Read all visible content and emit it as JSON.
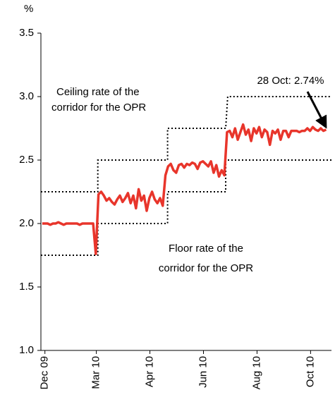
{
  "chart_data": {
    "type": "line",
    "y_label": "%",
    "xlim": [
      -3,
      214
    ],
    "ylim": [
      1.0,
      3.5
    ],
    "xticks": [
      {
        "value": 0,
        "label": "Dec 09"
      },
      {
        "value": 38.4,
        "label": "Mar 10"
      },
      {
        "value": 78.4,
        "label": "Apr 10"
      },
      {
        "value": 118.4,
        "label": "Jun 10"
      },
      {
        "value": 158.4,
        "label": "Aug 10"
      },
      {
        "value": 198.4,
        "label": "Oct 10"
      }
    ],
    "yticks": [
      {
        "value": 1,
        "label": "1.0"
      },
      1.5,
      {
        "value": 2,
        "label": "2.0"
      },
      2.5,
      {
        "value": 3,
        "label": "3.0"
      },
      3.5
    ],
    "series": [
      {
        "color": "#e8352b",
        "style": "solid",
        "x": [
          -2,
          0,
          2,
          4,
          6,
          8,
          10,
          12,
          14,
          16,
          18,
          20,
          22,
          24,
          26,
          28,
          30,
          32,
          34,
          36,
          38,
          40,
          42,
          44,
          46,
          48,
          50,
          52,
          54,
          56,
          58,
          60,
          62,
          64,
          66,
          68,
          70,
          72,
          74,
          76,
          78,
          80,
          82,
          84,
          86,
          88,
          90,
          92,
          94,
          96,
          98,
          100,
          102,
          104,
          106,
          108,
          110,
          112,
          114,
          116,
          118,
          120,
          122,
          124,
          126,
          128,
          130,
          132,
          134,
          136,
          138,
          140,
          142,
          144,
          146,
          148,
          150,
          152,
          154,
          156,
          158,
          160,
          162,
          164,
          166,
          168,
          170,
          172,
          174,
          176,
          178,
          180,
          182,
          184,
          186,
          188,
          190,
          192,
          194,
          196,
          198,
          200,
          202,
          204,
          206,
          208,
          210
        ],
        "values": [
          2.0,
          2.0,
          2.0,
          1.99,
          2.0,
          2.0,
          2.01,
          2.0,
          1.99,
          2.0,
          2.0,
          2.0,
          2.0,
          2.0,
          1.99,
          2.0,
          2.0,
          2.0,
          2.0,
          2.0,
          1.76,
          2.23,
          2.25,
          2.22,
          2.18,
          2.2,
          2.17,
          2.15,
          2.19,
          2.22,
          2.17,
          2.2,
          2.24,
          2.16,
          2.22,
          2.12,
          2.27,
          2.18,
          2.22,
          2.1,
          2.2,
          2.25,
          2.19,
          2.16,
          2.2,
          2.14,
          2.38,
          2.45,
          2.47,
          2.42,
          2.4,
          2.46,
          2.47,
          2.44,
          2.47,
          2.46,
          2.48,
          2.47,
          2.43,
          2.48,
          2.49,
          2.47,
          2.45,
          2.49,
          2.4,
          2.46,
          2.37,
          2.42,
          2.38,
          2.72,
          2.73,
          2.68,
          2.75,
          2.66,
          2.72,
          2.78,
          2.7,
          2.74,
          2.65,
          2.75,
          2.71,
          2.76,
          2.68,
          2.74,
          2.72,
          2.62,
          2.73,
          2.71,
          2.74,
          2.66,
          2.73,
          2.73,
          2.68,
          2.73,
          2.73,
          2.73,
          2.72,
          2.73,
          2.73,
          2.75,
          2.73,
          2.76,
          2.74,
          2.73,
          2.75,
          2.73,
          2.74
        ]
      },
      {
        "color": "#000000",
        "style": "dotted",
        "x": [
          -3,
          39.5,
          39.5,
          91.6,
          91.6,
          135,
          136.5,
          214
        ],
        "values": [
          2.25,
          2.25,
          2.5,
          2.5,
          2.75,
          2.75,
          3.0,
          3.0
        ]
      },
      {
        "color": "#000000",
        "style": "dotted",
        "x": [
          -3,
          39.5,
          39.5,
          91.6,
          91.6,
          135,
          135,
          214
        ],
        "values": [
          1.75,
          1.75,
          2.0,
          2.0,
          2.25,
          2.25,
          2.5,
          2.5
        ]
      }
    ],
    "annotations": {
      "ceiling": [
        "Ceiling rate of the",
        "corridor for the OPR"
      ],
      "floor": [
        "Floor rate of the",
        "corridor for the OPR"
      ],
      "latest": "28 Oct: 2.74%"
    }
  }
}
